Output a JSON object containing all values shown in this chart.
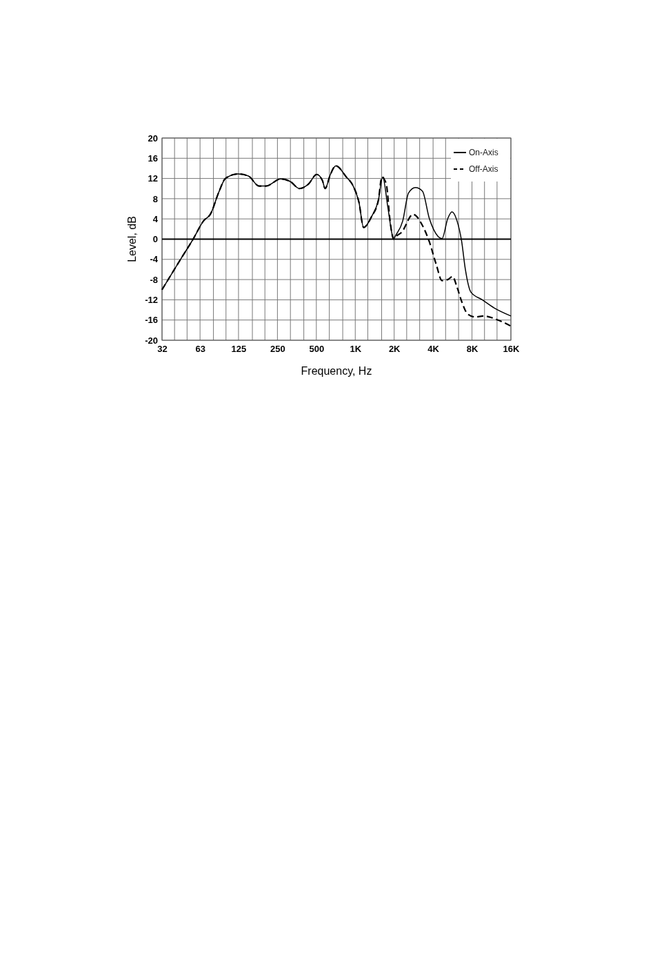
{
  "chart_data": {
    "type": "line",
    "xlabel": "Frequency, Hz",
    "ylabel": "Level, dB",
    "log": "x",
    "xlim": [
      32,
      16000
    ],
    "ylim": [
      -20,
      20
    ],
    "xticks": [
      32,
      {
        "value": 40,
        "label": null
      },
      {
        "value": 50,
        "label": null
      },
      63,
      {
        "value": 80,
        "label": null
      },
      {
        "value": 100,
        "label": null
      },
      125,
      {
        "value": 160,
        "label": null
      },
      {
        "value": 200,
        "label": null
      },
      250,
      {
        "value": 315,
        "label": null
      },
      {
        "value": 400,
        "label": null
      },
      500,
      {
        "value": 630,
        "label": null
      },
      {
        "value": 800,
        "label": null
      },
      {
        "value": 1000,
        "label": "1K"
      },
      {
        "value": 1250,
        "label": null
      },
      {
        "value": 1600,
        "label": null
      },
      {
        "value": 2000,
        "label": "2K"
      },
      {
        "value": 2500,
        "label": null
      },
      {
        "value": 3150,
        "label": null
      },
      {
        "value": 4000,
        "label": "4K"
      },
      {
        "value": 5000,
        "label": null
      },
      {
        "value": 6300,
        "label": null
      },
      {
        "value": 8000,
        "label": "8K"
      },
      {
        "value": 10000,
        "label": null
      },
      {
        "value": 12500,
        "label": null
      },
      {
        "value": 16000,
        "label": "16K"
      }
    ],
    "yticks": [
      -20,
      -16,
      -12,
      -8,
      -4,
      0,
      4,
      8,
      12,
      16,
      20
    ],
    "grid": true,
    "legend": "top right",
    "ref_lines": [
      {
        "axis": "y",
        "value": 0,
        "color": "#000000"
      }
    ],
    "series": [
      {
        "name": "On-Axis",
        "color": "#000000",
        "line_style": "solid",
        "x": [
          32,
          44.5,
          55.7,
          67,
          76,
          88,
          99,
          124,
          149,
          180,
          204,
          265,
          314,
          370,
          435,
          503,
          557,
          585,
          640,
          708,
          852,
          964,
          1068,
          1160,
          1340,
          1510,
          1630,
          1785,
          1930,
          1980,
          2040,
          2330,
          2580,
          2920,
          3310,
          3740,
          4060,
          4690,
          5200,
          5600,
          6130,
          6650,
          7100,
          7850,
          9600,
          11850,
          16000
        ],
        "values": [
          -10,
          -4,
          0,
          3.6,
          5,
          9.3,
          12,
          12.9,
          12.5,
          10.5,
          10.5,
          11.9,
          11.4,
          10,
          10.9,
          12.8,
          11.6,
          10,
          12.7,
          14.5,
          12.3,
          10.5,
          7.3,
          2.3,
          4.5,
          7.7,
          12.3,
          6.4,
          0.9,
          0,
          0.6,
          3.6,
          9.1,
          10.2,
          9.5,
          4.1,
          1.8,
          0.1,
          4.1,
          5.4,
          3.6,
          -0.4,
          -5.9,
          -10.5,
          -12,
          -13.6,
          -15.2
        ]
      },
      {
        "name": "Off-Axis",
        "color": "#000000",
        "line_style": "dashed",
        "x": [
          32,
          44.5,
          55.7,
          67,
          76,
          88,
          99,
          124,
          149,
          180,
          204,
          265,
          314,
          370,
          435,
          503,
          557,
          585,
          640,
          708,
          852,
          964,
          1068,
          1160,
          1340,
          1510,
          1590,
          1630,
          1670,
          1750,
          1850,
          1940,
          1980,
          2040,
          2290,
          2800,
          3310,
          3740,
          4230,
          4690,
          5200,
          5650,
          6130,
          6650,
          7400,
          8500,
          9800,
          12700,
          16000
        ],
        "values": [
          -10,
          -4,
          0,
          3.6,
          5,
          9.3,
          12,
          12.9,
          12.5,
          10.5,
          10.5,
          11.9,
          11.4,
          10,
          10.9,
          12.8,
          11.6,
          10,
          12.7,
          14.5,
          12.3,
          10.5,
          7.3,
          2.3,
          4.5,
          7.7,
          11.9,
          12.3,
          11.9,
          10.5,
          4.1,
          0.6,
          0,
          0.4,
          1.4,
          4.9,
          2.7,
          -0.5,
          -5,
          -8.2,
          -8,
          -7.4,
          -9.5,
          -12.3,
          -14.8,
          -15.4,
          -15.2,
          -16,
          -17.2
        ]
      }
    ]
  }
}
